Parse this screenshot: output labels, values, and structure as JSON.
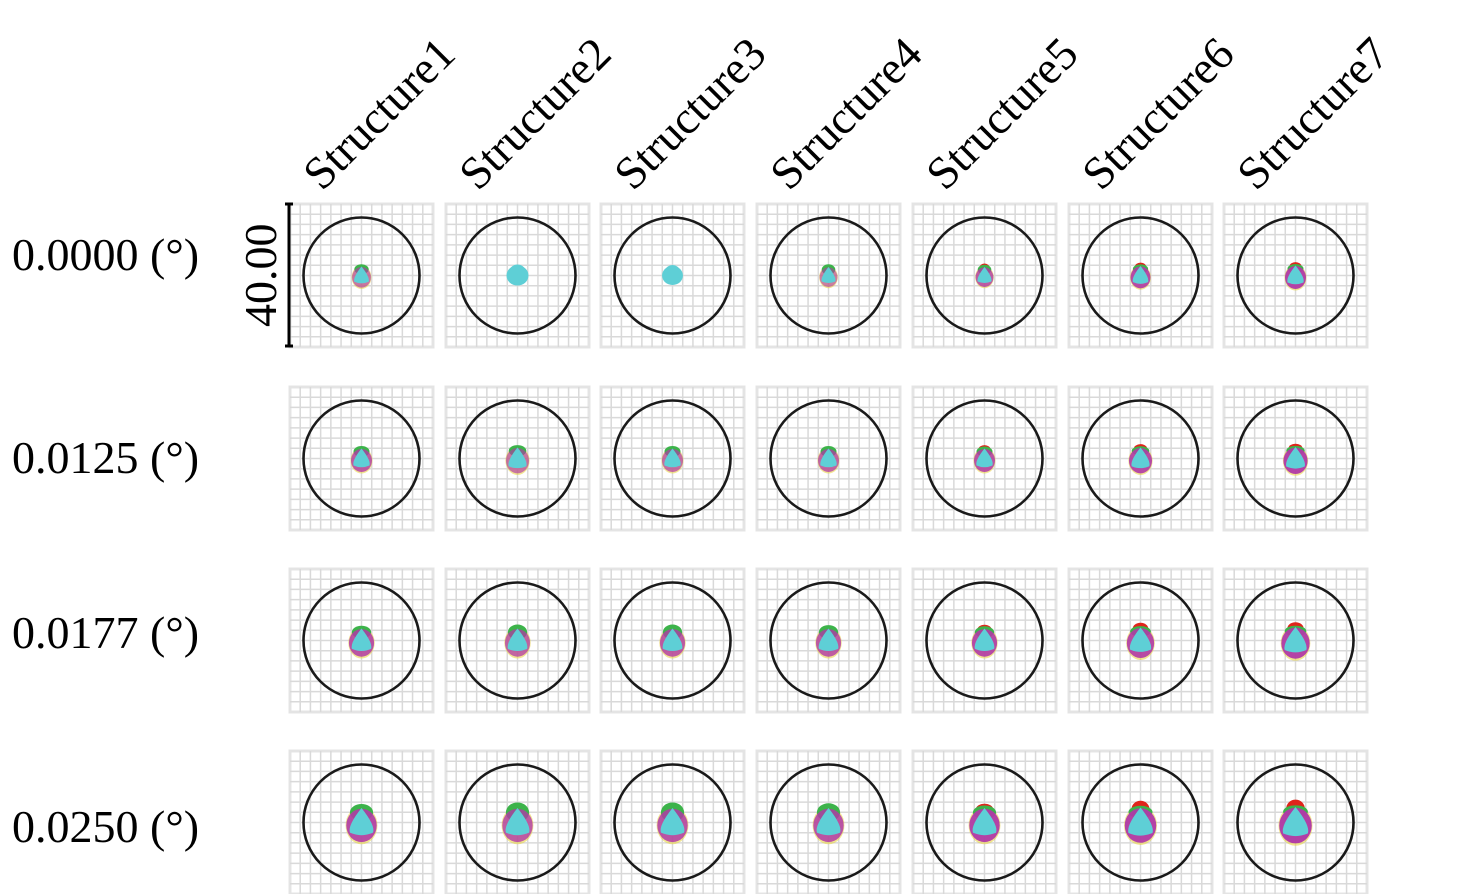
{
  "columns": [
    "Structure1",
    "Structure2",
    "Structure3",
    "Structure4",
    "Structure5",
    "Structure6",
    "Structure7"
  ],
  "rows": [
    "0.0000 (°)",
    "0.0125 (°)",
    "0.0177 (°)",
    "0.0250 (°)"
  ],
  "scale_bar": {
    "label": "40.00"
  },
  "colors": {
    "grid": "#d9d9d9",
    "circle": "#1a1a1a",
    "cyan": "#5ecfd6",
    "magenta": "#b03aa6",
    "green": "#3cb34a",
    "red": "#e0241b",
    "yellow": "#e8d23a"
  },
  "spot_diagrams": [
    [
      {
        "size": 0.9,
        "magenta": 0.3,
        "green": 0.2,
        "red": 0.0,
        "cyan_only": false
      },
      {
        "size": 1.0,
        "magenta": 0.0,
        "green": 0.0,
        "red": 0.0,
        "cyan_only": true
      },
      {
        "size": 0.95,
        "magenta": 0.0,
        "green": 0.0,
        "red": 0.0,
        "cyan_only": true
      },
      {
        "size": 0.85,
        "magenta": 0.2,
        "green": 0.3,
        "red": 0.0,
        "cyan_only": false
      },
      {
        "size": 0.85,
        "magenta": 0.6,
        "green": 0.2,
        "red": 0.1,
        "cyan_only": false
      },
      {
        "size": 0.95,
        "magenta": 0.8,
        "green": 0.1,
        "red": 0.1,
        "cyan_only": false
      },
      {
        "size": 1.0,
        "magenta": 0.9,
        "green": 0.1,
        "red": 0.1,
        "cyan_only": false
      }
    ],
    [
      {
        "size": 1.0,
        "magenta": 0.6,
        "green": 0.3,
        "red": 0.0,
        "cyan_only": false
      },
      {
        "size": 1.1,
        "magenta": 0.3,
        "green": 0.3,
        "red": 0.0,
        "cyan_only": false
      },
      {
        "size": 1.0,
        "magenta": 0.4,
        "green": 0.3,
        "red": 0.0,
        "cyan_only": false
      },
      {
        "size": 1.0,
        "magenta": 0.5,
        "green": 0.3,
        "red": 0.0,
        "cyan_only": false
      },
      {
        "size": 1.0,
        "magenta": 0.7,
        "green": 0.2,
        "red": 0.1,
        "cyan_only": false
      },
      {
        "size": 1.1,
        "magenta": 0.8,
        "green": 0.1,
        "red": 0.1,
        "cyan_only": false
      },
      {
        "size": 1.15,
        "magenta": 0.9,
        "green": 0.1,
        "red": 0.1,
        "cyan_only": false
      }
    ],
    [
      {
        "size": 1.2,
        "magenta": 0.7,
        "green": 0.4,
        "red": 0.0,
        "cyan_only": false
      },
      {
        "size": 1.2,
        "magenta": 0.5,
        "green": 0.6,
        "red": 0.0,
        "cyan_only": false
      },
      {
        "size": 1.2,
        "magenta": 0.6,
        "green": 0.6,
        "red": 0.0,
        "cyan_only": false
      },
      {
        "size": 1.2,
        "magenta": 0.6,
        "green": 0.5,
        "red": 0.0,
        "cyan_only": false
      },
      {
        "size": 1.2,
        "magenta": 0.8,
        "green": 0.3,
        "red": 0.2,
        "cyan_only": false
      },
      {
        "size": 1.3,
        "magenta": 0.8,
        "green": 0.2,
        "red": 0.4,
        "cyan_only": false
      },
      {
        "size": 1.35,
        "magenta": 0.9,
        "green": 0.2,
        "red": 0.4,
        "cyan_only": false
      }
    ],
    [
      {
        "size": 1.45,
        "magenta": 0.8,
        "green": 0.6,
        "red": 0.0,
        "cyan_only": false
      },
      {
        "size": 1.45,
        "magenta": 0.6,
        "green": 0.8,
        "red": 0.0,
        "cyan_only": false
      },
      {
        "size": 1.45,
        "magenta": 0.7,
        "green": 0.8,
        "red": 0.0,
        "cyan_only": false
      },
      {
        "size": 1.45,
        "magenta": 0.7,
        "green": 0.7,
        "red": 0.0,
        "cyan_only": false
      },
      {
        "size": 1.45,
        "magenta": 0.9,
        "green": 0.4,
        "red": 0.3,
        "cyan_only": false
      },
      {
        "size": 1.5,
        "magenta": 0.9,
        "green": 0.3,
        "red": 0.7,
        "cyan_only": false
      },
      {
        "size": 1.55,
        "magenta": 0.95,
        "green": 0.3,
        "red": 0.8,
        "cyan_only": false
      }
    ]
  ]
}
